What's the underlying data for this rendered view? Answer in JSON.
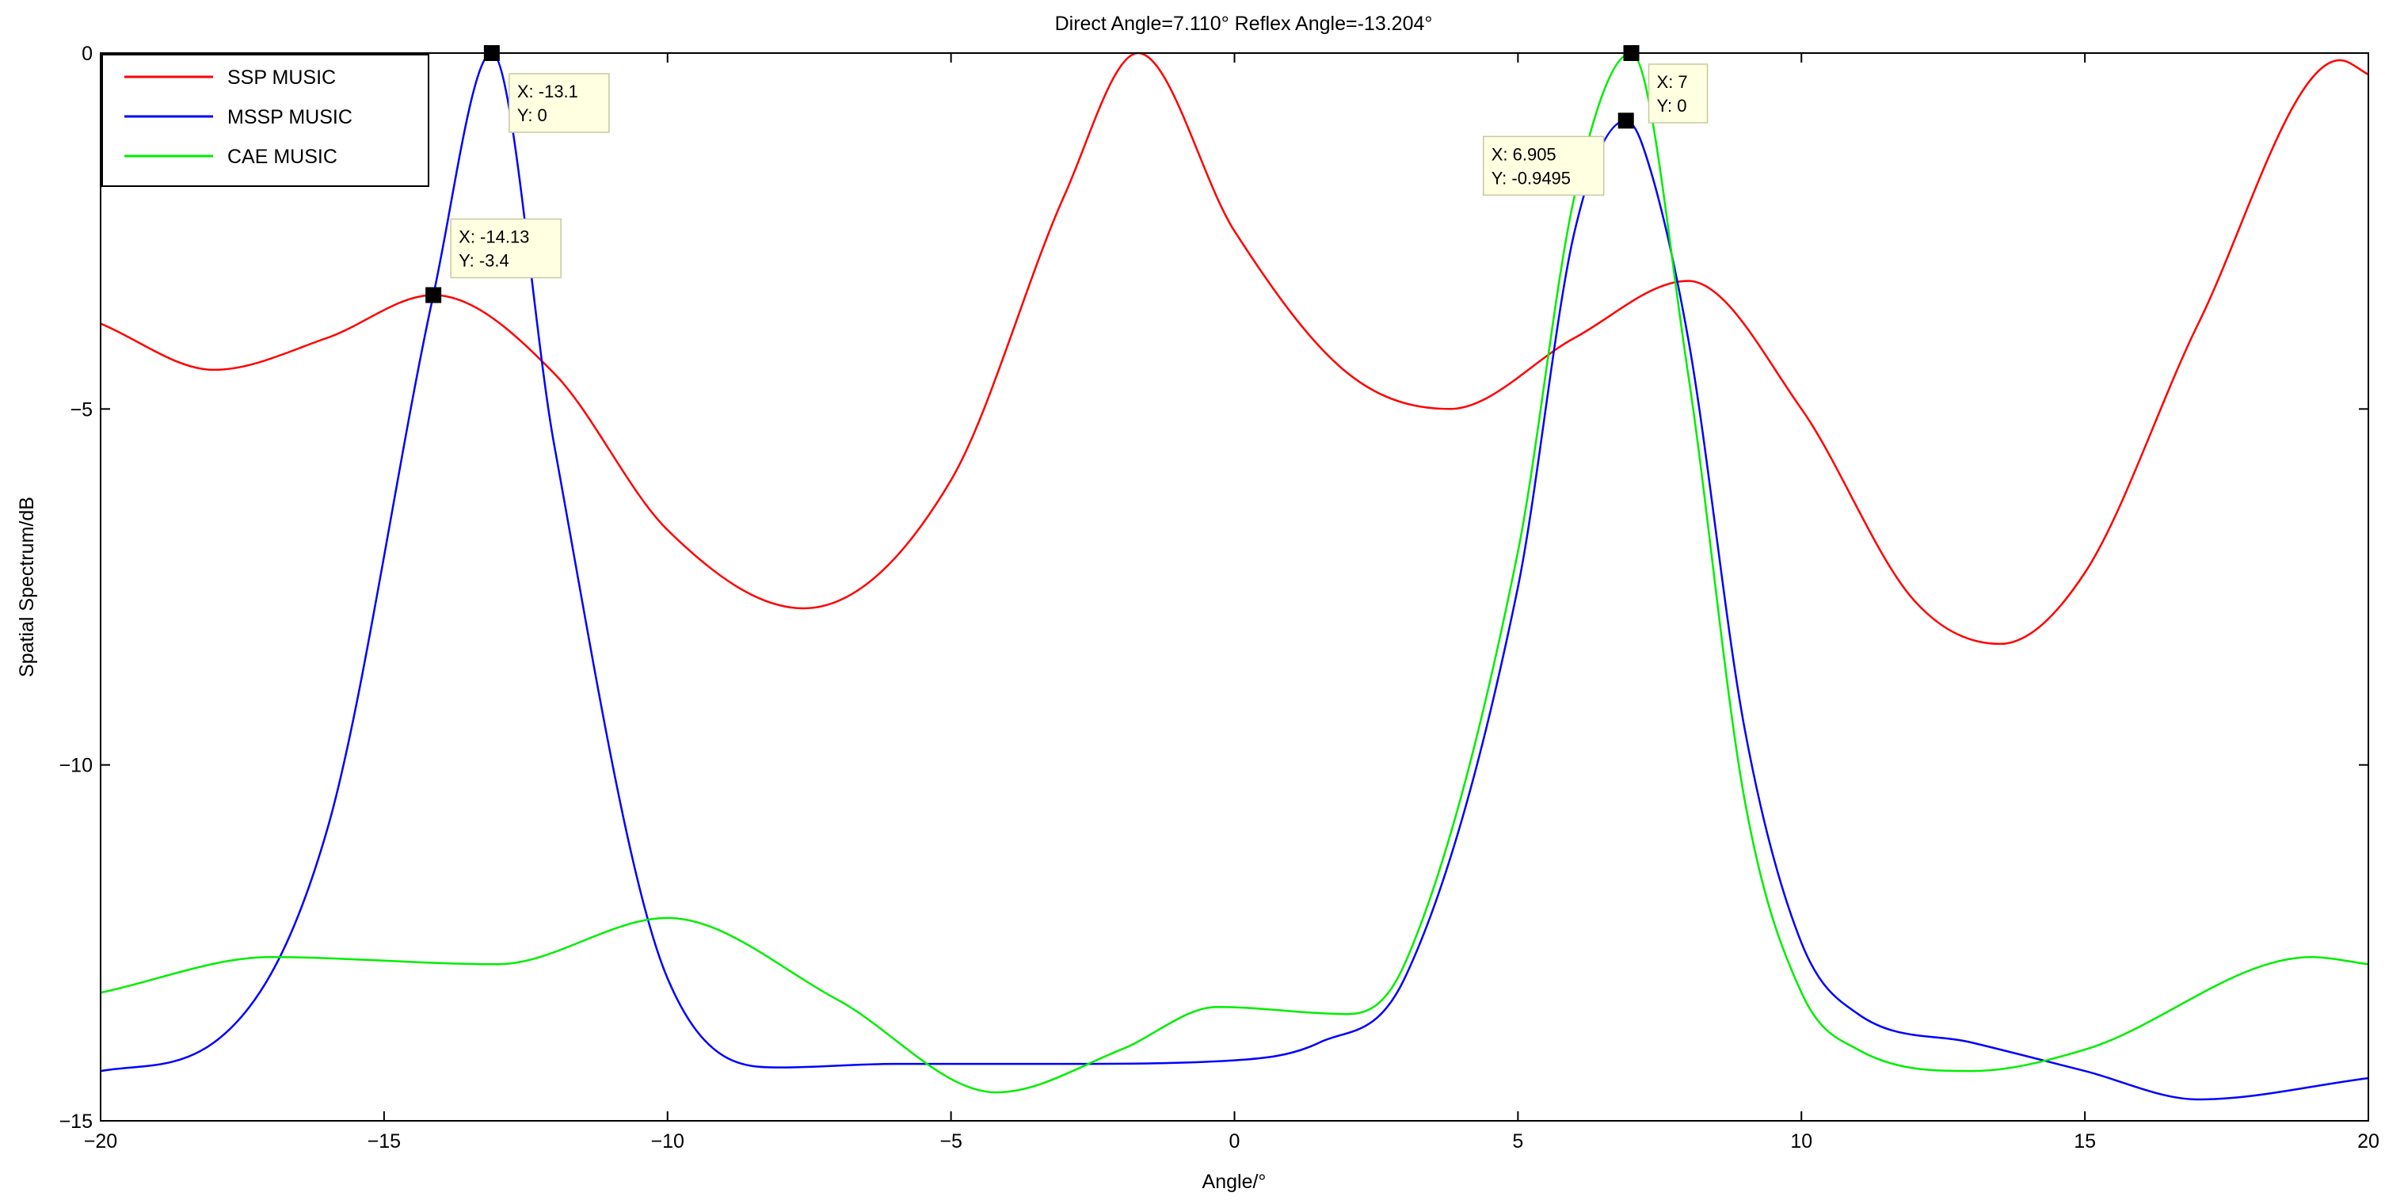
{
  "chart_data": {
    "type": "line",
    "title": "Direct Angle=7.110°   Reflex Angle=-13.204°",
    "xlabel": "Angle/°",
    "ylabel": "Spatial Spectrum/dB",
    "xlim": [
      -20,
      20
    ],
    "ylim": [
      -15,
      0
    ],
    "grid": false,
    "legend_position": "top-left",
    "x_ticks": [
      -20,
      -15,
      -10,
      -5,
      0,
      5,
      10,
      15,
      20
    ],
    "y_ticks": [
      0,
      -5,
      -10,
      -15
    ],
    "x_tick_labels": [
      "−20",
      "−15",
      "−10",
      "−5",
      "0",
      "5",
      "10",
      "15",
      "20"
    ],
    "y_tick_labels": [
      "0",
      "−5",
      "−10",
      "−15"
    ],
    "series": [
      {
        "name": "SSP MUSIC",
        "color": "#ff0000",
        "x": [
          -20,
          -18,
          -16,
          -14.13,
          -12,
          -10,
          -7.6,
          -5,
          -3,
          -1.7,
          0,
          2,
          3.8,
          6,
          8,
          10,
          12,
          13.5,
          15,
          17,
          19.5,
          20
        ],
        "y": [
          -3.8,
          -4.45,
          -4.0,
          -3.4,
          -4.5,
          -6.7,
          -7.8,
          -6.0,
          -2.0,
          0,
          -2.5,
          -4.5,
          -5.0,
          -4.0,
          -3.2,
          -5.0,
          -7.7,
          -8.3,
          -7.3,
          -3.8,
          -0.1,
          -0.3
        ]
      },
      {
        "name": "MSSP MUSIC",
        "color": "#0000ff",
        "x": [
          -20,
          -18,
          -16,
          -14.13,
          -13.1,
          -12,
          -10,
          -8,
          -6,
          -3,
          0,
          1.5,
          3,
          5,
          6,
          6.905,
          7.2,
          8,
          9,
          10,
          11,
          13,
          15,
          17,
          20
        ],
        "y": [
          -14.3,
          -13.9,
          -10.9,
          -3.4,
          0,
          -5.5,
          -13.0,
          -14.25,
          -14.2,
          -14.2,
          -14.15,
          -13.9,
          -13.0,
          -7.5,
          -2.5,
          -0.9495,
          -1.3,
          -4.0,
          -9.5,
          -12.5,
          -13.5,
          -13.9,
          -14.3,
          -14.7,
          -14.4
        ]
      },
      {
        "name": "CAE MUSIC",
        "color": "#00ee00",
        "x": [
          -20,
          -17,
          -13,
          -10,
          -7,
          -4.2,
          -2,
          -0.3,
          2,
          3,
          5,
          6,
          7,
          8,
          9,
          10,
          11,
          13,
          15,
          19,
          20
        ],
        "y": [
          -13.2,
          -12.7,
          -12.8,
          -12.15,
          -13.3,
          -14.6,
          -14.0,
          -13.4,
          -13.5,
          -12.8,
          -7.0,
          -2.0,
          0,
          -4.5,
          -10.5,
          -13.2,
          -14.0,
          -14.3,
          -14.0,
          -12.7,
          -12.8
        ]
      }
    ],
    "annotations": [
      {
        "x": -13.1,
        "y": 0,
        "x_text": "X: -13.1",
        "y_text": "Y: 0"
      },
      {
        "x": -14.13,
        "y": -3.4,
        "x_text": "X: -14.13",
        "y_text": "Y: -3.4"
      },
      {
        "x": 7,
        "y": 0,
        "x_text": "X: 7",
        "y_text": "Y: 0"
      },
      {
        "x": 6.905,
        "y": -0.9495,
        "x_text": "X: 6.905",
        "y_text": "Y: -0.9495"
      }
    ]
  }
}
